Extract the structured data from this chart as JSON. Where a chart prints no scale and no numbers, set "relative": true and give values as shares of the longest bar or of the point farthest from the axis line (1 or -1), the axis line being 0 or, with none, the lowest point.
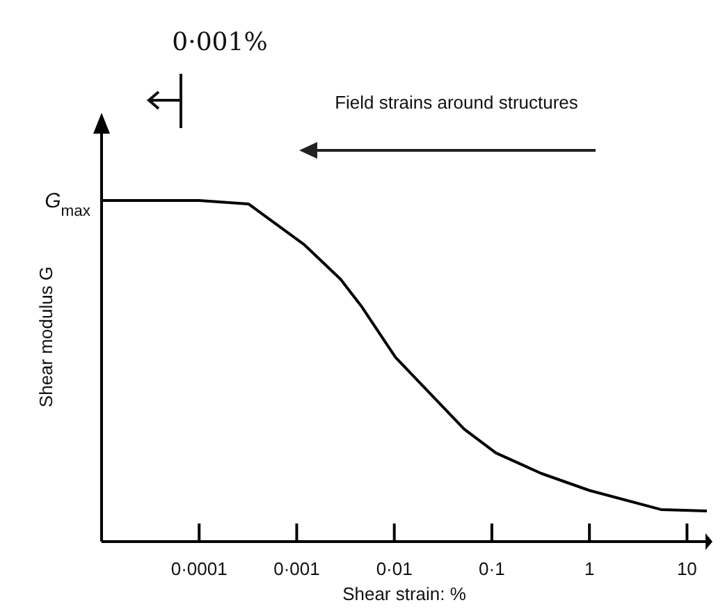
{
  "chart_data": {
    "type": "line",
    "xlabel": "Shear strain: %",
    "ylabel": "Shear modulus G",
    "relative": true,
    "log": "x",
    "marker": "none",
    "line_style": "solid",
    "x": [
      1e-05,
      0.0001,
      0.00032,
      0.0012,
      0.0028,
      0.0046,
      0.0103,
      0.052,
      0.11,
      0.32,
      1,
      5.4,
      16
    ],
    "series": [
      {
        "color": "#000000",
        "values": [
          1,
          1,
          0.99,
          0.87,
          0.77,
          0.69,
          0.54,
          0.33,
          0.26,
          0.2,
          0.15,
          0.094,
          0.09
        ]
      }
    ],
    "xlim": [
      1e-05,
      16
    ],
    "xticks": [
      {
        "value": 0.0001,
        "label": "0·0001"
      },
      {
        "value": 0.001,
        "label": "0·001"
      },
      {
        "value": 0.01,
        "label": "0·01"
      },
      {
        "value": 0.1,
        "label": "0·1"
      },
      {
        "value": 1,
        "label": "1"
      },
      {
        "value": 10,
        "label": "10"
      }
    ],
    "annotations": [
      {
        "text": "G$_{max}$",
        "x": 1e-05,
        "y": 1
      },
      "Field strains around structures",
      "0·001%"
    ]
  }
}
